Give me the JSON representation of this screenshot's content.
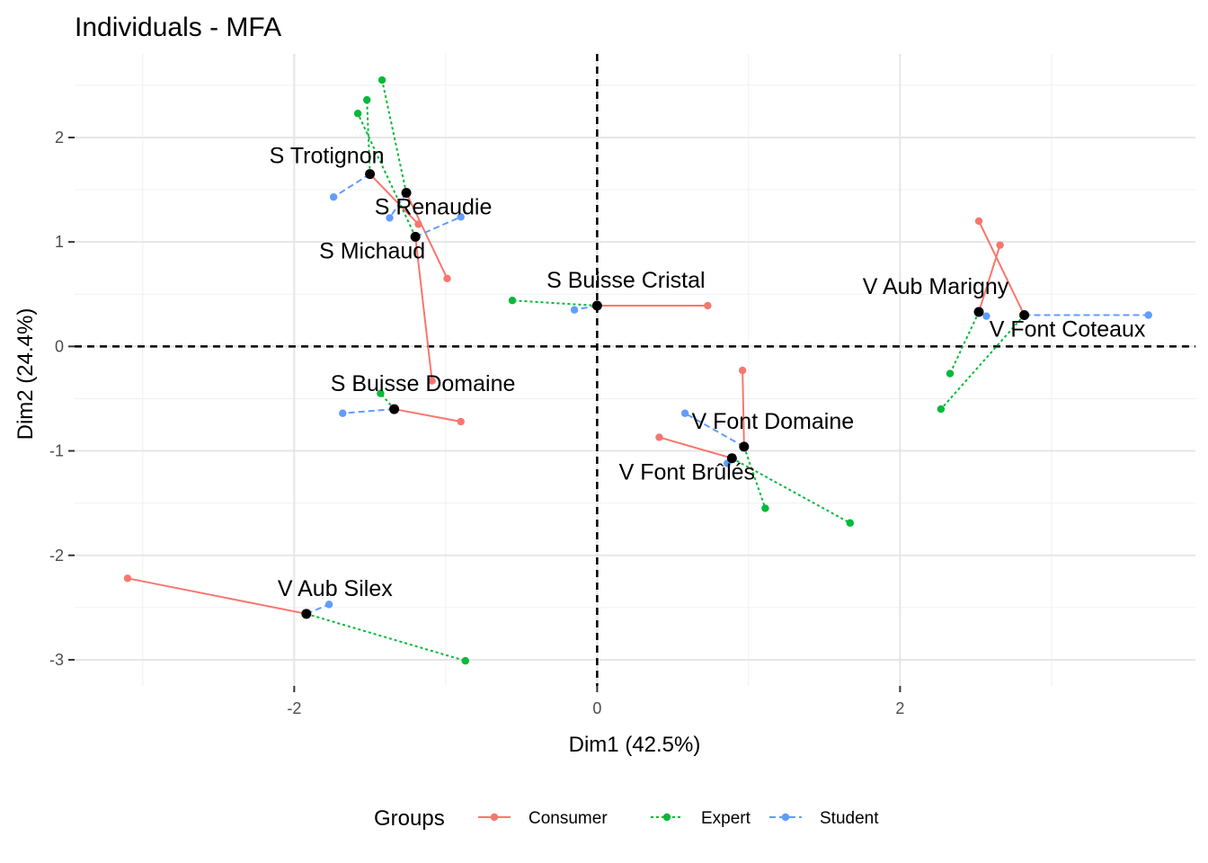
{
  "chart_data": {
    "type": "scatter",
    "title": "Individuals - MFA",
    "xlabel": "Dim1 (42.5%)",
    "ylabel": "Dim2 (24.4%)",
    "xlim": [
      -3.45,
      3.95
    ],
    "ylim": [
      -3.25,
      2.8
    ],
    "x_ticks": [
      -2,
      0,
      2
    ],
    "y_ticks": [
      -3,
      -2,
      -1,
      0,
      1,
      2
    ],
    "reference_lines": {
      "x": 0,
      "y": 0,
      "style": "dashed"
    },
    "grid": true,
    "legend": {
      "title": "Groups",
      "position": "bottom"
    },
    "groups": [
      {
        "name": "Consumer",
        "color": "#F8766D",
        "line": "solid"
      },
      {
        "name": "Expert",
        "color": "#00BA38",
        "line": "dotted"
      },
      {
        "name": "Student",
        "color": "#619CFF",
        "line": "dashed"
      }
    ],
    "individuals": [
      {
        "label": "S Trotignon",
        "x": -1.5,
        "y": 1.65,
        "partial": {
          "Consumer": [
            -1.18,
            1.17
          ],
          "Expert": [
            -1.52,
            2.36
          ],
          "Student": [
            -1.74,
            1.43
          ]
        }
      },
      {
        "label": "S Renaudie",
        "x": -1.26,
        "y": 1.47,
        "partial": {
          "Consumer": [
            -0.99,
            0.65
          ],
          "Expert": [
            -1.42,
            2.55
          ],
          "Student": [
            -1.37,
            1.23
          ]
        }
      },
      {
        "label": "S Michaud",
        "x": -1.2,
        "y": 1.05,
        "partial": {
          "Consumer": [
            -1.09,
            -0.33
          ],
          "Expert": [
            -1.58,
            2.23
          ],
          "Student": [
            -0.9,
            1.24
          ]
        }
      },
      {
        "label": "S Buisse Cristal",
        "x": 0.0,
        "y": 0.39,
        "partial": {
          "Consumer": [
            0.73,
            0.39
          ],
          "Expert": [
            -0.56,
            0.44
          ],
          "Student": [
            -0.15,
            0.35
          ]
        }
      },
      {
        "label": "S Buisse Domaine",
        "x": -1.34,
        "y": -0.6,
        "partial": {
          "Consumer": [
            -0.9,
            -0.72
          ],
          "Expert": [
            -1.43,
            -0.45
          ],
          "Student": [
            -1.68,
            -0.64
          ]
        }
      },
      {
        "label": "V Aub Marigny",
        "x": 2.52,
        "y": 0.33,
        "partial": {
          "Consumer": [
            2.66,
            0.97
          ],
          "Expert": [
            2.33,
            -0.26
          ],
          "Student": [
            2.57,
            0.29
          ]
        }
      },
      {
        "label": "V Font Coteaux",
        "x": 2.82,
        "y": 0.3,
        "partial": {
          "Consumer": [
            2.52,
            1.2
          ],
          "Expert": [
            2.27,
            -0.6
          ],
          "Student": [
            3.64,
            0.3
          ]
        }
      },
      {
        "label": "V Font Domaine",
        "x": 0.97,
        "y": -0.96,
        "partial": {
          "Consumer": [
            0.96,
            -0.23
          ],
          "Expert": [
            1.11,
            -1.55
          ],
          "Student": [
            0.58,
            -0.64
          ]
        }
      },
      {
        "label": "V Font Brûlés",
        "x": 0.89,
        "y": -1.07,
        "partial": {
          "Consumer": [
            0.41,
            -0.87
          ],
          "Expert": [
            1.67,
            -1.69
          ],
          "Student": [
            0.86,
            -1.12
          ]
        }
      },
      {
        "label": "V Aub Silex",
        "x": -1.92,
        "y": -2.56,
        "partial": {
          "Consumer": [
            -3.1,
            -2.22
          ],
          "Expert": [
            -0.87,
            -3.01
          ],
          "Student": [
            -1.77,
            -2.47
          ]
        }
      }
    ]
  }
}
